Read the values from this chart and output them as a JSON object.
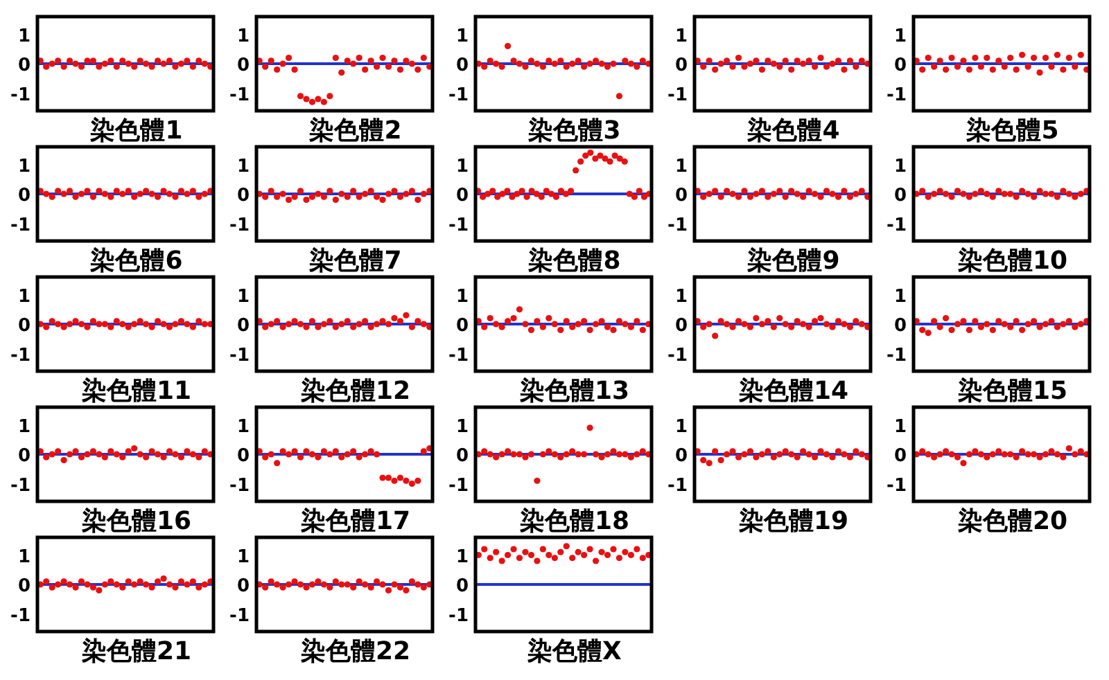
{
  "chart_data": [
    {
      "type": "scatter",
      "xlabel": "染色體1",
      "categories": [
        null,
        null,
        null,
        null,
        null,
        null,
        null,
        null,
        null,
        null,
        null,
        null,
        null,
        null,
        null,
        null,
        null,
        null,
        null,
        null,
        null,
        null,
        null,
        null,
        null,
        null,
        null,
        null,
        null,
        null
      ],
      "values": [
        0.1,
        -0.1,
        0,
        0.1,
        -0.1,
        0.1,
        0,
        -0.1,
        0.1,
        0.1,
        -0.1,
        0,
        0.1,
        -0.1,
        0.1,
        0,
        -0.1,
        0.1,
        0,
        -0.1,
        0.1,
        0,
        0.1,
        -0.1,
        0,
        0.1,
        -0.1,
        0.1,
        0,
        -0.1
      ],
      "color": "#e81010",
      "marker": "circle",
      "ylim": [
        -1.6,
        1.6
      ],
      "yticks": [
        -1,
        0,
        1
      ],
      "ref_lines": [
        {
          "axis": "y",
          "value": 0,
          "color": "#2233cc"
        }
      ],
      "tick_labels": "y"
    },
    {
      "type": "scatter",
      "xlabel": "染色體2",
      "categories": [
        null,
        null,
        null,
        null,
        null,
        null,
        null,
        null,
        null,
        null,
        null,
        null,
        null,
        null,
        null,
        null,
        null,
        null,
        null,
        null,
        null,
        null,
        null,
        null,
        null,
        null,
        null,
        null,
        null,
        null
      ],
      "values": [
        0.1,
        -0.1,
        0.1,
        -0.2,
        0,
        0.2,
        -0.2,
        -1.1,
        -1.2,
        -1.3,
        -1.2,
        -1.3,
        -1.1,
        0.2,
        -0.3,
        0.1,
        0,
        0.2,
        -0.2,
        0.1,
        -0.1,
        0.2,
        -0.1,
        0.1,
        -0.2,
        0.1,
        0,
        -0.2,
        0.2,
        -0.1
      ],
      "color": "#e81010",
      "marker": "circle",
      "ylim": [
        -1.6,
        1.6
      ],
      "yticks": [
        -1,
        0,
        1
      ],
      "ref_lines": [
        {
          "axis": "y",
          "value": 0,
          "color": "#2233cc"
        }
      ],
      "tick_labels": "y"
    },
    {
      "type": "scatter",
      "xlabel": "染色體3",
      "categories": [
        null,
        null,
        null,
        null,
        null,
        null,
        null,
        null,
        null,
        null,
        null,
        null,
        null,
        null,
        null,
        null,
        null,
        null,
        null,
        null,
        null,
        null,
        null,
        null,
        null,
        null,
        null,
        null,
        null,
        null
      ],
      "values": [
        0,
        -0.1,
        0.1,
        0,
        -0.1,
        0.6,
        0.1,
        0,
        -0.1,
        0.1,
        0,
        -0.1,
        0.1,
        0,
        0.1,
        -0.1,
        0,
        0.1,
        -0.1,
        0,
        0.1,
        0,
        -0.1,
        0,
        -1.1,
        0.1,
        0,
        -0.1,
        0.1,
        0
      ],
      "color": "#e81010",
      "marker": "circle",
      "ylim": [
        -1.6,
        1.6
      ],
      "yticks": [
        -1,
        0,
        1
      ],
      "ref_lines": [
        {
          "axis": "y",
          "value": 0,
          "color": "#2233cc"
        }
      ],
      "tick_labels": "y"
    },
    {
      "type": "scatter",
      "xlabel": "染色體4",
      "categories": [
        null,
        null,
        null,
        null,
        null,
        null,
        null,
        null,
        null,
        null,
        null,
        null,
        null,
        null,
        null,
        null,
        null,
        null,
        null,
        null,
        null,
        null,
        null,
        null,
        null,
        null,
        null,
        null,
        null,
        null
      ],
      "values": [
        0.1,
        -0.1,
        0.1,
        -0.2,
        0,
        0.1,
        -0.1,
        0.2,
        -0.1,
        0,
        0.1,
        -0.2,
        0.1,
        0,
        -0.1,
        0.1,
        -0.2,
        0.1,
        0,
        0.1,
        -0.1,
        0.2,
        -0.1,
        0,
        0.1,
        -0.2,
        0.1,
        -0.1,
        0.1,
        0
      ],
      "color": "#e81010",
      "marker": "circle",
      "ylim": [
        -1.6,
        1.6
      ],
      "yticks": [
        -1,
        0,
        1
      ],
      "ref_lines": [
        {
          "axis": "y",
          "value": 0,
          "color": "#2233cc"
        }
      ],
      "tick_labels": "y"
    },
    {
      "type": "scatter",
      "xlabel": "染色體5",
      "categories": [
        null,
        null,
        null,
        null,
        null,
        null,
        null,
        null,
        null,
        null,
        null,
        null,
        null,
        null,
        null,
        null,
        null,
        null,
        null,
        null,
        null,
        null,
        null,
        null,
        null,
        null,
        null,
        null,
        null,
        null
      ],
      "values": [
        0.1,
        -0.2,
        0.2,
        -0.1,
        0.1,
        -0.2,
        0.2,
        -0.1,
        0.1,
        -0.2,
        0.2,
        -0.1,
        0.2,
        -0.2,
        0.1,
        -0.1,
        0.2,
        -0.2,
        0.3,
        -0.1,
        0.2,
        -0.3,
        0.2,
        -0.1,
        0.3,
        -0.2,
        0.2,
        -0.1,
        0.3,
        -0.2
      ],
      "color": "#e81010",
      "marker": "circle",
      "ylim": [
        -1.6,
        1.6
      ],
      "yticks": [
        -1,
        0,
        1
      ],
      "ref_lines": [
        {
          "axis": "y",
          "value": 0,
          "color": "#2233cc"
        }
      ],
      "tick_labels": "y"
    },
    {
      "type": "scatter",
      "xlabel": "染色體6",
      "categories": [
        null,
        null,
        null,
        null,
        null,
        null,
        null,
        null,
        null,
        null,
        null,
        null,
        null,
        null,
        null,
        null,
        null,
        null,
        null,
        null,
        null,
        null,
        null,
        null,
        null,
        null,
        null,
        null,
        null,
        null
      ],
      "values": [
        0.1,
        0,
        -0.1,
        0.1,
        0,
        0.1,
        -0.1,
        0,
        0.1,
        -0.1,
        0.1,
        0,
        -0.1,
        0.1,
        0,
        0.1,
        -0.1,
        0,
        0.1,
        0,
        -0.1,
        0.1,
        0,
        -0.1,
        0.1,
        0,
        0.1,
        -0.1,
        0,
        0.1
      ],
      "color": "#e81010",
      "marker": "circle",
      "ylim": [
        -1.6,
        1.6
      ],
      "yticks": [
        -1,
        0,
        1
      ],
      "ref_lines": [
        {
          "axis": "y",
          "value": 0,
          "color": "#2233cc"
        }
      ],
      "tick_labels": "y"
    },
    {
      "type": "scatter",
      "xlabel": "染色體7",
      "categories": [
        null,
        null,
        null,
        null,
        null,
        null,
        null,
        null,
        null,
        null,
        null,
        null,
        null,
        null,
        null,
        null,
        null,
        null,
        null,
        null,
        null,
        null,
        null,
        null,
        null,
        null,
        null,
        null,
        null,
        null
      ],
      "values": [
        0,
        -0.1,
        0.1,
        -0.1,
        0,
        -0.2,
        -0.1,
        0.1,
        -0.2,
        -0.1,
        0,
        -0.1,
        0.1,
        -0.2,
        0,
        -0.1,
        0.1,
        -0.1,
        0,
        0.1,
        -0.1,
        -0.2,
        0,
        0.1,
        -0.1,
        0,
        0.1,
        -0.2,
        0,
        0.1
      ],
      "color": "#e81010",
      "marker": "circle",
      "ylim": [
        -1.6,
        1.6
      ],
      "yticks": [
        -1,
        0,
        1
      ],
      "ref_lines": [
        {
          "axis": "y",
          "value": 0,
          "color": "#2233cc"
        }
      ],
      "tick_labels": "y"
    },
    {
      "type": "scatter",
      "xlabel": "染色體8",
      "categories": [
        null,
        null,
        null,
        null,
        null,
        null,
        null,
        null,
        null,
        null,
        null,
        null,
        null,
        null,
        null,
        null,
        null,
        null,
        null,
        null,
        null,
        null,
        null,
        null,
        null,
        null,
        null,
        null,
        null,
        null,
        null,
        null,
        null,
        null,
        null,
        null
      ],
      "values": [
        0.1,
        -0.1,
        0,
        0.1,
        -0.1,
        0,
        0.1,
        -0.1,
        0,
        0.1,
        -0.1,
        0.1,
        0,
        -0.1,
        0.1,
        0,
        -0.1,
        0.1,
        0,
        0.1,
        0.8,
        1.1,
        1.3,
        1.4,
        1.2,
        1.3,
        1.2,
        1.1,
        1.3,
        1.2,
        1.1,
        0,
        -0.1,
        0.1,
        -0.1,
        0
      ],
      "color": "#e81010",
      "marker": "circle",
      "ylim": [
        -1.6,
        1.6
      ],
      "yticks": [
        -1,
        0,
        1
      ],
      "ref_lines": [
        {
          "axis": "y",
          "value": 0,
          "color": "#2233cc"
        }
      ],
      "tick_labels": "y"
    },
    {
      "type": "scatter",
      "xlabel": "染色體9",
      "categories": [
        null,
        null,
        null,
        null,
        null,
        null,
        null,
        null,
        null,
        null,
        null,
        null,
        null,
        null,
        null,
        null,
        null,
        null,
        null,
        null,
        null,
        null,
        null,
        null,
        null,
        null,
        null,
        null,
        null,
        null
      ],
      "values": [
        0.1,
        -0.1,
        0,
        0.1,
        -0.1,
        0.1,
        0,
        -0.1,
        0.1,
        -0.1,
        0,
        0.1,
        -0.1,
        0,
        0.1,
        -0.1,
        0.1,
        0,
        -0.1,
        0.1,
        0,
        -0.1,
        0.1,
        0,
        -0.1,
        0.1,
        -0.1,
        0,
        0.1,
        -0.1
      ],
      "color": "#e81010",
      "marker": "circle",
      "ylim": [
        -1.6,
        1.6
      ],
      "yticks": [
        -1,
        0,
        1
      ],
      "ref_lines": [
        {
          "axis": "y",
          "value": 0,
          "color": "#2233cc"
        }
      ],
      "tick_labels": "y"
    },
    {
      "type": "scatter",
      "xlabel": "染色體10",
      "categories": [
        null,
        null,
        null,
        null,
        null,
        null,
        null,
        null,
        null,
        null,
        null,
        null,
        null,
        null,
        null,
        null,
        null,
        null,
        null,
        null,
        null,
        null,
        null,
        null,
        null,
        null,
        null,
        null,
        null,
        null
      ],
      "values": [
        0,
        0.1,
        -0.1,
        0,
        0.1,
        0,
        -0.1,
        0.1,
        0,
        -0.1,
        0,
        0.1,
        0,
        -0.1,
        0.1,
        0,
        0,
        -0.1,
        0.1,
        0,
        -0.1,
        0.1,
        0,
        0,
        -0.1,
        0.1,
        0,
        -0.1,
        0,
        0.1
      ],
      "color": "#e81010",
      "marker": "circle",
      "ylim": [
        -1.6,
        1.6
      ],
      "yticks": [
        -1,
        0,
        1
      ],
      "ref_lines": [
        {
          "axis": "y",
          "value": 0,
          "color": "#2233cc"
        }
      ],
      "tick_labels": "y"
    },
    {
      "type": "scatter",
      "xlabel": "染色體11",
      "categories": [
        null,
        null,
        null,
        null,
        null,
        null,
        null,
        null,
        null,
        null,
        null,
        null,
        null,
        null,
        null,
        null,
        null,
        null,
        null,
        null,
        null,
        null,
        null,
        null,
        null,
        null,
        null,
        null,
        null,
        null
      ],
      "values": [
        0,
        -0.1,
        0.1,
        0,
        -0.1,
        0,
        0.1,
        0,
        -0.1,
        0.1,
        0,
        0,
        -0.1,
        0.1,
        0,
        -0.1,
        0,
        0.1,
        0,
        -0.1,
        0.1,
        0,
        -0.1,
        0,
        0.1,
        0,
        -0.1,
        0.1,
        0,
        0
      ],
      "color": "#e81010",
      "marker": "circle",
      "ylim": [
        -1.6,
        1.6
      ],
      "yticks": [
        -1,
        0,
        1
      ],
      "ref_lines": [
        {
          "axis": "y",
          "value": 0,
          "color": "#2233cc"
        }
      ],
      "tick_labels": "y"
    },
    {
      "type": "scatter",
      "xlabel": "染色體12",
      "categories": [
        null,
        null,
        null,
        null,
        null,
        null,
        null,
        null,
        null,
        null,
        null,
        null,
        null,
        null,
        null,
        null,
        null,
        null,
        null,
        null,
        null,
        null,
        null,
        null,
        null,
        null,
        null,
        null,
        null,
        null
      ],
      "values": [
        0.1,
        -0.1,
        0,
        0.1,
        -0.1,
        0,
        0.1,
        0,
        -0.1,
        0.1,
        -0.1,
        0,
        0.1,
        -0.1,
        0,
        0.1,
        -0.1,
        0,
        0.1,
        -0.1,
        0,
        0.1,
        0,
        0.2,
        0.1,
        0.3,
        -0.1,
        0.1,
        0,
        -0.1
      ],
      "color": "#e81010",
      "marker": "circle",
      "ylim": [
        -1.6,
        1.6
      ],
      "yticks": [
        -1,
        0,
        1
      ],
      "ref_lines": [
        {
          "axis": "y",
          "value": 0,
          "color": "#2233cc"
        }
      ],
      "tick_labels": "y"
    },
    {
      "type": "scatter",
      "xlabel": "染色體13",
      "categories": [
        null,
        null,
        null,
        null,
        null,
        null,
        null,
        null,
        null,
        null,
        null,
        null,
        null,
        null,
        null,
        null,
        null,
        null,
        null,
        null,
        null,
        null,
        null,
        null,
        null,
        null,
        null,
        null,
        null,
        null
      ],
      "values": [
        0.1,
        -0.1,
        0.2,
        0,
        -0.1,
        0.1,
        0.2,
        0.5,
        0,
        -0.2,
        0.1,
        -0.1,
        0.2,
        0,
        -0.2,
        0.1,
        -0.1,
        0,
        0.1,
        -0.2,
        0,
        0.1,
        -0.1,
        -0.2,
        0.1,
        0,
        -0.1,
        0.1,
        -0.2,
        0
      ],
      "color": "#e81010",
      "marker": "circle",
      "ylim": [
        -1.6,
        1.6
      ],
      "yticks": [
        -1,
        0,
        1
      ],
      "ref_lines": [
        {
          "axis": "y",
          "value": 0,
          "color": "#2233cc"
        }
      ],
      "tick_labels": "y"
    },
    {
      "type": "scatter",
      "xlabel": "染色體14",
      "categories": [
        null,
        null,
        null,
        null,
        null,
        null,
        null,
        null,
        null,
        null,
        null,
        null,
        null,
        null,
        null,
        null,
        null,
        null,
        null,
        null,
        null,
        null,
        null,
        null,
        null,
        null,
        null,
        null,
        null,
        null
      ],
      "values": [
        0.1,
        -0.1,
        0,
        -0.4,
        0.1,
        0,
        -0.1,
        0.1,
        0,
        -0.1,
        0.2,
        0,
        0.1,
        -0.1,
        0.2,
        0,
        -0.1,
        0.1,
        0,
        -0.1,
        0.1,
        0.2,
        0,
        -0.1,
        0.1,
        0,
        -0.1,
        0.1,
        0,
        -0.1
      ],
      "color": "#e81010",
      "marker": "circle",
      "ylim": [
        -1.6,
        1.6
      ],
      "yticks": [
        -1,
        0,
        1
      ],
      "ref_lines": [
        {
          "axis": "y",
          "value": 0,
          "color": "#2233cc"
        }
      ],
      "tick_labels": "y"
    },
    {
      "type": "scatter",
      "xlabel": "染色體15",
      "categories": [
        null,
        null,
        null,
        null,
        null,
        null,
        null,
        null,
        null,
        null,
        null,
        null,
        null,
        null,
        null,
        null,
        null,
        null,
        null,
        null,
        null,
        null,
        null,
        null,
        null,
        null,
        null,
        null,
        null,
        null
      ],
      "values": [
        0.1,
        -0.2,
        -0.3,
        0.1,
        -0.1,
        0.2,
        -0.2,
        0,
        0.1,
        -0.2,
        0.1,
        -0.1,
        0,
        -0.2,
        0.1,
        0,
        -0.1,
        0.1,
        -0.2,
        0,
        0.1,
        -0.1,
        0,
        0.1,
        -0.1,
        0,
        0.1,
        -0.1,
        0,
        0.1
      ],
      "color": "#e81010",
      "marker": "circle",
      "ylim": [
        -1.6,
        1.6
      ],
      "yticks": [
        -1,
        0,
        1
      ],
      "ref_lines": [
        {
          "axis": "y",
          "value": 0,
          "color": "#2233cc"
        }
      ],
      "tick_labels": "y"
    },
    {
      "type": "scatter",
      "xlabel": "染色體16",
      "categories": [
        null,
        null,
        null,
        null,
        null,
        null,
        null,
        null,
        null,
        null,
        null,
        null,
        null,
        null,
        null,
        null,
        null,
        null,
        null,
        null,
        null,
        null,
        null,
        null,
        null,
        null,
        null,
        null,
        null,
        null
      ],
      "values": [
        0.1,
        -0.1,
        0,
        0.1,
        -0.2,
        0,
        0.1,
        -0.1,
        0,
        0.1,
        0,
        -0.1,
        0.1,
        0,
        -0.1,
        0.1,
        0.2,
        0,
        -0.1,
        0.1,
        0,
        -0.1,
        0.1,
        0,
        -0.1,
        0.1,
        0,
        -0.1,
        0.1,
        0
      ],
      "color": "#e81010",
      "marker": "circle",
      "ylim": [
        -1.6,
        1.6
      ],
      "yticks": [
        -1,
        0,
        1
      ],
      "ref_lines": [
        {
          "axis": "y",
          "value": 0,
          "color": "#2233cc"
        }
      ],
      "tick_labels": "y"
    },
    {
      "type": "scatter",
      "xlabel": "染色體17",
      "categories": [
        null,
        null,
        null,
        null,
        null,
        null,
        null,
        null,
        null,
        null,
        null,
        null,
        null,
        null,
        null,
        null,
        null,
        null,
        null,
        null,
        null,
        null,
        null,
        null,
        null,
        null,
        null,
        null,
        null,
        null
      ],
      "values": [
        0.1,
        -0.1,
        0,
        -0.3,
        0.1,
        0,
        0.1,
        -0.1,
        0.1,
        0,
        -0.1,
        0.1,
        0,
        0.1,
        -0.1,
        0,
        0.1,
        -0.1,
        0,
        0.1,
        0,
        -0.8,
        -0.8,
        -0.9,
        -0.8,
        -0.9,
        -1.0,
        -0.9,
        0.1,
        0.2
      ],
      "color": "#e81010",
      "marker": "circle",
      "ylim": [
        -1.6,
        1.6
      ],
      "yticks": [
        -1,
        0,
        1
      ],
      "ref_lines": [
        {
          "axis": "y",
          "value": 0,
          "color": "#2233cc"
        }
      ],
      "tick_labels": "y"
    },
    {
      "type": "scatter",
      "xlabel": "染色體18",
      "categories": [
        null,
        null,
        null,
        null,
        null,
        null,
        null,
        null,
        null,
        null,
        null,
        null,
        null,
        null,
        null,
        null,
        null,
        null,
        null,
        null,
        null,
        null,
        null,
        null,
        null,
        null,
        null,
        null,
        null,
        null
      ],
      "values": [
        0,
        0.1,
        0,
        -0.1,
        0,
        0.1,
        0,
        0,
        -0.1,
        0,
        -0.9,
        0,
        0.1,
        0,
        -0.1,
        0,
        0.1,
        0,
        0,
        0.9,
        0,
        -0.1,
        0,
        0.1,
        0,
        0,
        -0.1,
        0,
        0.1,
        0
      ],
      "color": "#e81010",
      "marker": "circle",
      "ylim": [
        -1.6,
        1.6
      ],
      "yticks": [
        -1,
        0,
        1
      ],
      "ref_lines": [
        {
          "axis": "y",
          "value": 0,
          "color": "#2233cc"
        }
      ],
      "tick_labels": "y"
    },
    {
      "type": "scatter",
      "xlabel": "染色體19",
      "categories": [
        null,
        null,
        null,
        null,
        null,
        null,
        null,
        null,
        null,
        null,
        null,
        null,
        null,
        null,
        null,
        null,
        null,
        null,
        null,
        null,
        null,
        null,
        null,
        null,
        null,
        null,
        null,
        null,
        null,
        null
      ],
      "values": [
        0.1,
        -0.2,
        -0.3,
        0.1,
        -0.2,
        0,
        0.1,
        -0.1,
        0,
        0.1,
        -0.1,
        0,
        0.1,
        -0.1,
        0,
        0.1,
        0,
        -0.1,
        0.1,
        0,
        -0.1,
        0.1,
        0,
        -0.1,
        0.1,
        0,
        -0.1,
        0.1,
        0,
        -0.1
      ],
      "color": "#e81010",
      "marker": "circle",
      "ylim": [
        -1.6,
        1.6
      ],
      "yticks": [
        -1,
        0,
        1
      ],
      "ref_lines": [
        {
          "axis": "y",
          "value": 0,
          "color": "#2233cc"
        }
      ],
      "tick_labels": "y"
    },
    {
      "type": "scatter",
      "xlabel": "染色體20",
      "categories": [
        null,
        null,
        null,
        null,
        null,
        null,
        null,
        null,
        null,
        null,
        null,
        null,
        null,
        null,
        null,
        null,
        null,
        null,
        null,
        null,
        null,
        null,
        null,
        null,
        null,
        null,
        null,
        null,
        null,
        null
      ],
      "values": [
        0,
        0.1,
        0,
        -0.1,
        0,
        0.1,
        0,
        -0.1,
        -0.3,
        0,
        0.1,
        0,
        -0.1,
        0,
        0.1,
        0,
        0,
        -0.1,
        0.1,
        0,
        0,
        -0.1,
        0,
        0.1,
        0,
        -0.1,
        0.2,
        0,
        0.1,
        0
      ],
      "color": "#e81010",
      "marker": "circle",
      "ylim": [
        -1.6,
        1.6
      ],
      "yticks": [
        -1,
        0,
        1
      ],
      "ref_lines": [
        {
          "axis": "y",
          "value": 0,
          "color": "#2233cc"
        }
      ],
      "tick_labels": "y"
    },
    {
      "type": "scatter",
      "xlabel": "染色體21",
      "categories": [
        null,
        null,
        null,
        null,
        null,
        null,
        null,
        null,
        null,
        null,
        null,
        null,
        null,
        null,
        null,
        null,
        null,
        null,
        null,
        null,
        null,
        null,
        null,
        null,
        null,
        null,
        null,
        null,
        null,
        null
      ],
      "values": [
        0,
        0.1,
        -0.1,
        0,
        0.1,
        0,
        -0.1,
        0.1,
        0,
        -0.1,
        -0.2,
        0,
        0.1,
        0,
        -0.1,
        0.1,
        0,
        0.1,
        0,
        -0.1,
        0.1,
        0.2,
        0,
        -0.1,
        0.1,
        0,
        0.1,
        -0.1,
        0,
        0.1
      ],
      "color": "#e81010",
      "marker": "circle",
      "ylim": [
        -1.6,
        1.6
      ],
      "yticks": [
        -1,
        0,
        1
      ],
      "ref_lines": [
        {
          "axis": "y",
          "value": 0,
          "color": "#2233cc"
        }
      ],
      "tick_labels": "y"
    },
    {
      "type": "scatter",
      "xlabel": "染色體22",
      "categories": [
        null,
        null,
        null,
        null,
        null,
        null,
        null,
        null,
        null,
        null,
        null,
        null,
        null,
        null,
        null,
        null,
        null,
        null,
        null,
        null,
        null,
        null,
        null,
        null,
        null,
        null,
        null,
        null,
        null,
        null
      ],
      "values": [
        0,
        -0.1,
        0.1,
        0,
        -0.1,
        0,
        0.1,
        0,
        -0.1,
        0,
        0.1,
        0,
        -0.1,
        0.1,
        0,
        0,
        -0.1,
        0.1,
        0,
        -0.1,
        0.1,
        0,
        -0.2,
        0,
        -0.1,
        -0.2,
        0.1,
        0,
        -0.1,
        0
      ],
      "color": "#e81010",
      "marker": "circle",
      "ylim": [
        -1.6,
        1.6
      ],
      "yticks": [
        -1,
        0,
        1
      ],
      "ref_lines": [
        {
          "axis": "y",
          "value": 0,
          "color": "#2233cc"
        }
      ],
      "tick_labels": "y"
    },
    {
      "type": "scatter",
      "xlabel": "染色體X",
      "categories": [
        null,
        null,
        null,
        null,
        null,
        null,
        null,
        null,
        null,
        null,
        null,
        null,
        null,
        null,
        null,
        null,
        null,
        null,
        null,
        null,
        null,
        null,
        null,
        null,
        null,
        null,
        null,
        null,
        null,
        null
      ],
      "values": [
        1.0,
        1.2,
        0.9,
        1.1,
        0.8,
        1.0,
        1.2,
        0.9,
        1.1,
        1.0,
        0.8,
        1.2,
        1.0,
        0.9,
        1.1,
        1.3,
        0.9,
        1.1,
        1.0,
        1.2,
        0.8,
        1.1,
        1.0,
        1.2,
        0.9,
        1.1,
        1.0,
        1.2,
        0.9,
        1.0
      ],
      "color": "#e81010",
      "marker": "circle",
      "ylim": [
        -1.6,
        1.6
      ],
      "yticks": [
        -1,
        0,
        1
      ],
      "ref_lines": [
        {
          "axis": "y",
          "value": 0,
          "color": "#2233cc"
        }
      ],
      "tick_labels": "y"
    }
  ]
}
